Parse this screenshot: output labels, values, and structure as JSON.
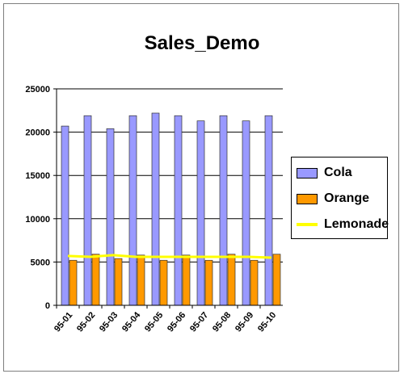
{
  "chart_data": {
    "type": "bar",
    "title": "Sales_Demo",
    "categories": [
      "95-01",
      "95-02",
      "95-03",
      "95-04",
      "95-05",
      "95-06",
      "95-07",
      "95-08",
      "95-09",
      "95-10"
    ],
    "series": [
      {
        "name": "Cola",
        "kind": "bar",
        "color": "#9999ff",
        "values": [
          20700,
          21900,
          20400,
          21900,
          22200,
          21900,
          21300,
          21900,
          21300,
          21900
        ]
      },
      {
        "name": "Orange",
        "kind": "bar",
        "color": "#ff9900",
        "values": [
          5200,
          5900,
          5400,
          5800,
          5200,
          5800,
          5200,
          5900,
          5200,
          5900
        ]
      },
      {
        "name": "Lemonade",
        "kind": "line",
        "color": "#ffff00",
        "values": [
          5700,
          5600,
          5800,
          5600,
          5600,
          5600,
          5600,
          5600,
          5600,
          5500
        ]
      }
    ],
    "ylim": [
      0,
      25000
    ],
    "yticks": [
      "0",
      "5000",
      "10000",
      "15000",
      "20000",
      "25000"
    ],
    "grid": true,
    "legend_position": "right"
  }
}
